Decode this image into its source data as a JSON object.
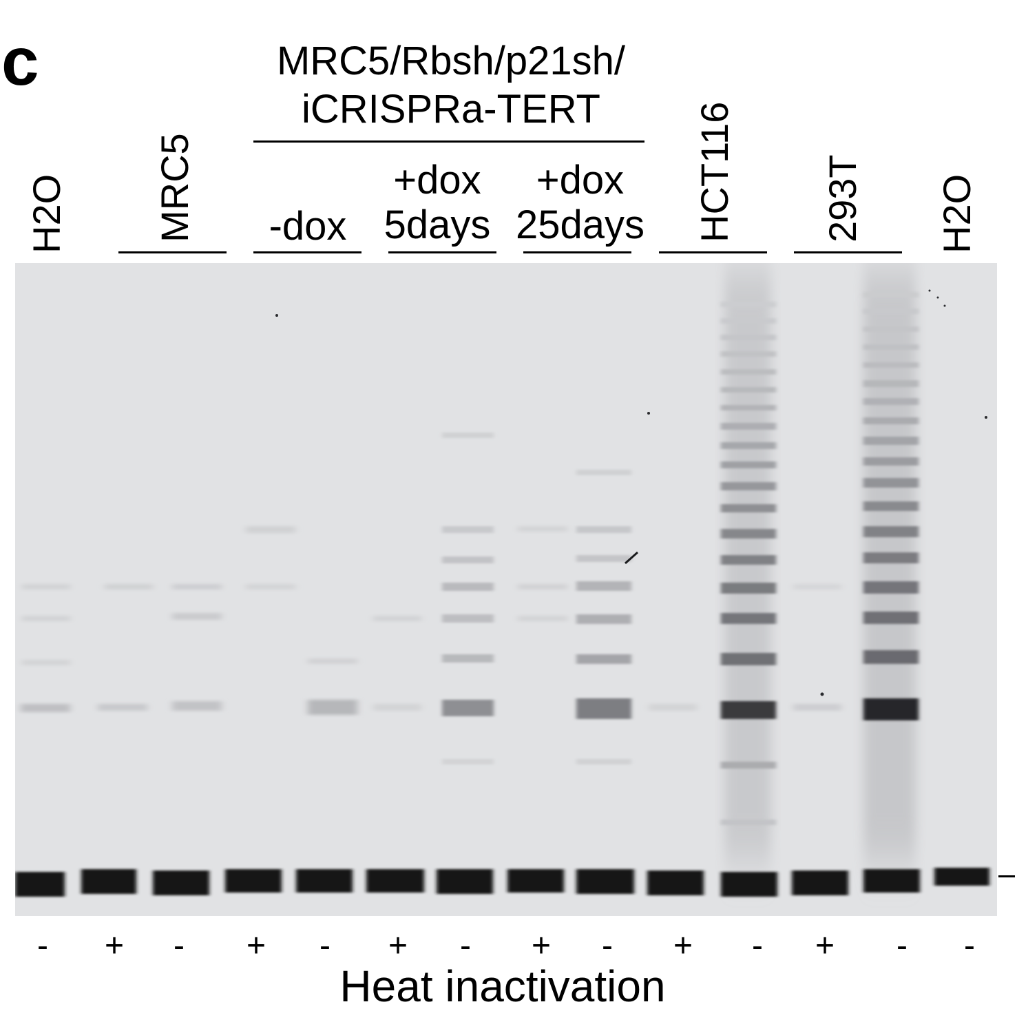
{
  "panel_letter": "c",
  "group_title": {
    "line1": "MRC5/Rbsh/p21sh/",
    "line2": "iCRISPRa-TERT"
  },
  "lane_labels": {
    "h2o_left": "H2O",
    "mrc5": "MRC5",
    "minus_dox": "-dox",
    "dox5": {
      "line1": "+dox",
      "line2": "5days"
    },
    "dox25": {
      "line1": "+dox",
      "line2": "25days"
    },
    "hct116": "HCT116",
    "t293": "293T",
    "h2o_right": "H2O"
  },
  "heat_inactivation_signs": [
    "-",
    "+",
    "-",
    "+",
    "-",
    "+",
    "-",
    "+",
    "-",
    "+",
    "-",
    "+",
    "-",
    "-"
  ],
  "xlabel": "Heat inactivation",
  "colors": {
    "gel_background": "#e1e2e4",
    "band": "#141416",
    "text": "#000000"
  }
}
